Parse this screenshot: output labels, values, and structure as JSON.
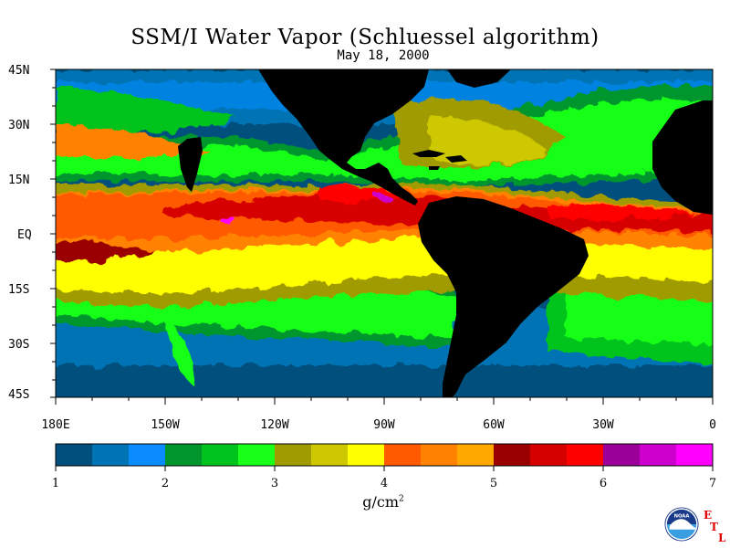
{
  "title": "SSM/I Water Vapor (Schluessel algorithm)",
  "date": "May 18, 2000",
  "lat_labels": [
    "45N",
    "30N",
    "15N",
    "EQ",
    "15S",
    "30S",
    "45S"
  ],
  "lon_labels": [
    "180E",
    "150W",
    "120W",
    "90W",
    "60W",
    "30W",
    "0"
  ],
  "colorbar": {
    "colors": [
      "#00507d",
      "#0073b4",
      "#0a8cff",
      "#00962d",
      "#00c31e",
      "#19ff19",
      "#a09b00",
      "#cdc800",
      "#ffff00",
      "#ff5a00",
      "#ff8200",
      "#ffa800",
      "#9b0000",
      "#d70000",
      "#ff0000",
      "#9b009b",
      "#cd00cd",
      "#ff00ff"
    ],
    "tick_labels": [
      "1",
      "2",
      "3",
      "4",
      "5",
      "6",
      "7"
    ],
    "units_main": "g/cm",
    "units_sup": "2"
  },
  "logo": {
    "agency": "NOAA",
    "etl_letters": [
      "E",
      "T",
      "L"
    ]
  },
  "map_colors": {
    "land": "#000000",
    "ocean_low": "#00507d",
    "ocean_mid": "#0073b4"
  }
}
